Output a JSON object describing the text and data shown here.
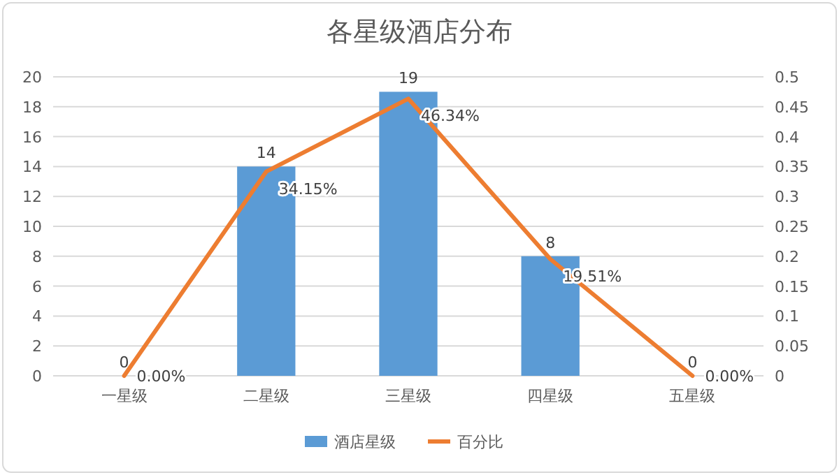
{
  "chart_data": {
    "type": "bar",
    "title": "各星级酒店分布",
    "categories": [
      "一星级",
      "二星级",
      "三星级",
      "四星级",
      "五星级"
    ],
    "series": [
      {
        "name": "酒店星级",
        "color": "#5b9bd5",
        "values": [
          0,
          14,
          19,
          8,
          0
        ]
      },
      {
        "name": "百分比",
        "type": "line",
        "axis": "y2",
        "color": "#ed7d31",
        "values": [
          0,
          0.3415,
          0.4634,
          0.1951,
          0
        ],
        "value_labels": [
          "0.00%",
          "34.15%",
          "46.34%",
          "19.51%",
          "0.00%"
        ]
      }
    ],
    "data_labels": true,
    "ylim": [
      0,
      20
    ],
    "yticks": [
      0,
      2,
      4,
      6,
      8,
      10,
      12,
      14,
      16,
      18,
      20
    ],
    "y2lim": [
      0,
      0.5
    ],
    "y2ticks": [
      0,
      0.05,
      0.1,
      0.15,
      0.2,
      0.25,
      0.3,
      0.35,
      0.4,
      0.45,
      0.5
    ],
    "grid": "y",
    "legend": "bottom",
    "marker": "none",
    "line_style": "solid"
  }
}
